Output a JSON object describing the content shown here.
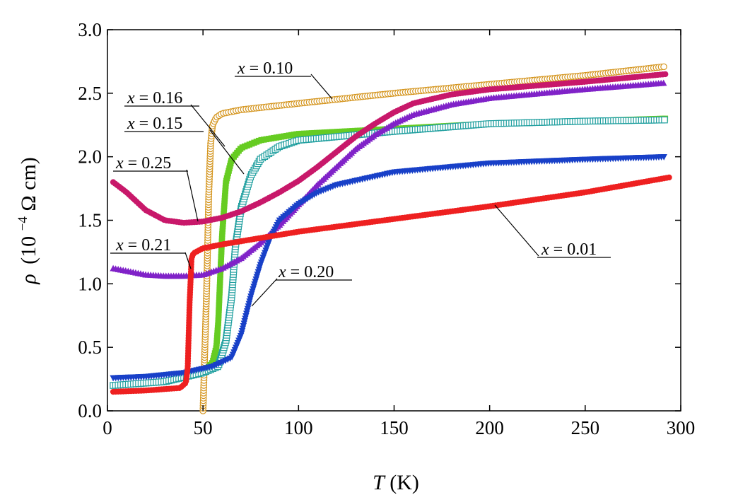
{
  "chart_data": {
    "type": "line",
    "title": "",
    "xlabel_symbol": "T",
    "xlabel_unit": "(K)",
    "ylabel_symbol": "ρ",
    "ylabel_unit_pre": "(10",
    "ylabel_unit_exp": "−4",
    "ylabel_unit_post": " Ω cm)",
    "xlim": [
      0,
      300
    ],
    "ylim": [
      0.0,
      3.0
    ],
    "x_ticks": [
      0,
      50,
      100,
      150,
      200,
      250,
      300
    ],
    "y_ticks": [
      0.0,
      0.5,
      1.0,
      1.5,
      2.0,
      2.5,
      3.0
    ],
    "x_tick_labels": [
      "0",
      "50",
      "100",
      "150",
      "200",
      "250",
      "300"
    ],
    "y_tick_labels": [
      "0.0",
      "0.5",
      "1.0",
      "1.5",
      "2.0",
      "2.5",
      "3.0"
    ],
    "grid": false,
    "series": [
      {
        "name": "x = 0.10",
        "color": "#d4941c",
        "marker": "circle-open",
        "points": [
          [
            50,
            0.0
          ],
          [
            51,
            0.5
          ],
          [
            52,
            1.0
          ],
          [
            53,
            1.7
          ],
          [
            54,
            2.1
          ],
          [
            55,
            2.25
          ],
          [
            57,
            2.31
          ],
          [
            60,
            2.34
          ],
          [
            70,
            2.37
          ],
          [
            100,
            2.42
          ],
          [
            150,
            2.5
          ],
          [
            200,
            2.57
          ],
          [
            250,
            2.64
          ],
          [
            292,
            2.71
          ]
        ]
      },
      {
        "name": "x = 0.16",
        "color": "#66cc22",
        "marker": "square",
        "points": [
          [
            3,
            0.2
          ],
          [
            30,
            0.23
          ],
          [
            50,
            0.3
          ],
          [
            55,
            0.38
          ],
          [
            57,
            0.5
          ],
          [
            58,
            0.7
          ],
          [
            59,
            1.05
          ],
          [
            60,
            1.38
          ],
          [
            62,
            1.8
          ],
          [
            65,
            1.98
          ],
          [
            70,
            2.07
          ],
          [
            80,
            2.13
          ],
          [
            100,
            2.18
          ],
          [
            150,
            2.22
          ],
          [
            200,
            2.26
          ],
          [
            250,
            2.28
          ],
          [
            292,
            2.3
          ]
        ]
      },
      {
        "name": "x = 0.15",
        "color": "#22a0a0",
        "marker": "square-open",
        "points": [
          [
            3,
            0.2
          ],
          [
            30,
            0.23
          ],
          [
            50,
            0.3
          ],
          [
            58,
            0.35
          ],
          [
            62,
            0.55
          ],
          [
            65,
            0.9
          ],
          [
            67,
            1.3
          ],
          [
            70,
            1.6
          ],
          [
            75,
            1.85
          ],
          [
            80,
            1.98
          ],
          [
            90,
            2.08
          ],
          [
            100,
            2.13
          ],
          [
            150,
            2.2
          ],
          [
            200,
            2.26
          ],
          [
            250,
            2.28
          ],
          [
            292,
            2.29
          ]
        ]
      },
      {
        "name": "x = 0.25",
        "color": "#c8186a",
        "marker": "circle",
        "points": [
          [
            3,
            1.8
          ],
          [
            10,
            1.72
          ],
          [
            20,
            1.58
          ],
          [
            30,
            1.5
          ],
          [
            40,
            1.48
          ],
          [
            50,
            1.49
          ],
          [
            60,
            1.52
          ],
          [
            70,
            1.57
          ],
          [
            80,
            1.64
          ],
          [
            90,
            1.72
          ],
          [
            100,
            1.81
          ],
          [
            110,
            1.92
          ],
          [
            120,
            2.04
          ],
          [
            130,
            2.16
          ],
          [
            140,
            2.26
          ],
          [
            150,
            2.35
          ],
          [
            160,
            2.42
          ],
          [
            180,
            2.49
          ],
          [
            200,
            2.53
          ],
          [
            250,
            2.59
          ],
          [
            292,
            2.65
          ]
        ]
      },
      {
        "name": "x = 0.21",
        "color": "#8022c8",
        "marker": "triangle",
        "points": [
          [
            3,
            1.12
          ],
          [
            10,
            1.1
          ],
          [
            20,
            1.07
          ],
          [
            30,
            1.06
          ],
          [
            40,
            1.06
          ],
          [
            50,
            1.07
          ],
          [
            60,
            1.12
          ],
          [
            70,
            1.2
          ],
          [
            80,
            1.32
          ],
          [
            90,
            1.46
          ],
          [
            100,
            1.62
          ],
          [
            110,
            1.78
          ],
          [
            120,
            1.92
          ],
          [
            130,
            2.06
          ],
          [
            140,
            2.17
          ],
          [
            150,
            2.26
          ],
          [
            160,
            2.33
          ],
          [
            180,
            2.41
          ],
          [
            200,
            2.46
          ],
          [
            250,
            2.53
          ],
          [
            292,
            2.58
          ]
        ]
      },
      {
        "name": "x = 0.20",
        "color": "#1840c8",
        "marker": "triangle-down",
        "points": [
          [
            3,
            0.26
          ],
          [
            20,
            0.27
          ],
          [
            40,
            0.3
          ],
          [
            55,
            0.35
          ],
          [
            65,
            0.42
          ],
          [
            70,
            0.6
          ],
          [
            75,
            0.9
          ],
          [
            80,
            1.15
          ],
          [
            85,
            1.35
          ],
          [
            90,
            1.5
          ],
          [
            100,
            1.63
          ],
          [
            110,
            1.72
          ],
          [
            120,
            1.78
          ],
          [
            150,
            1.88
          ],
          [
            200,
            1.95
          ],
          [
            250,
            1.98
          ],
          [
            292,
            2.0
          ]
        ]
      },
      {
        "name": "x = 0.01",
        "color": "#ee2020",
        "marker": "circle",
        "points": [
          [
            3,
            0.15
          ],
          [
            20,
            0.16
          ],
          [
            38,
            0.18
          ],
          [
            41,
            0.22
          ],
          [
            42,
            0.34
          ],
          [
            43,
            0.85
          ],
          [
            44,
            1.2
          ],
          [
            45,
            1.24
          ],
          [
            50,
            1.28
          ],
          [
            60,
            1.31
          ],
          [
            80,
            1.36
          ],
          [
            100,
            1.41
          ],
          [
            150,
            1.51
          ],
          [
            200,
            1.61
          ],
          [
            250,
            1.72
          ],
          [
            295,
            1.84
          ]
        ]
      }
    ],
    "annotations": [
      {
        "var": "x",
        "text": " = 0.10"
      },
      {
        "var": "x",
        "text": " = 0.16"
      },
      {
        "var": "x",
        "text": " = 0.15"
      },
      {
        "var": "x",
        "text": " = 0.25"
      },
      {
        "var": "x",
        "text": " = 0.21"
      },
      {
        "var": "x",
        "text": " = 0.20"
      },
      {
        "var": "x",
        "text": " = 0.01"
      }
    ]
  }
}
